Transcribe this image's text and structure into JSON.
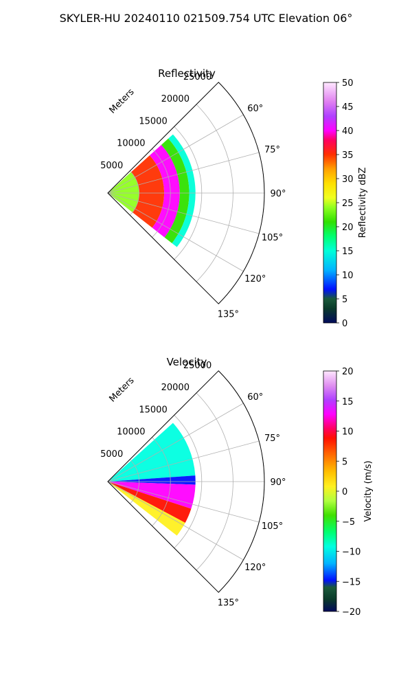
{
  "figure": {
    "suptitle": "SKYLER-HU  20240110  021509.754 UTC Elevation 06°"
  },
  "chart_data": [
    {
      "type": "heatmap",
      "projection": "polar-sector",
      "title": "Reflectivity",
      "radial_label": "Meters",
      "radial_ticks": [
        5000,
        10000,
        15000,
        20000,
        25000
      ],
      "radial_tick_labels": [
        "5000",
        "10000",
        "15000",
        "20000",
        "25000"
      ],
      "rlim": [
        0,
        25000
      ],
      "azimuth_range_deg": [
        45,
        135
      ],
      "azimuth_ticks_deg": [
        60,
        75,
        90,
        105,
        120,
        135
      ],
      "azimuth_tick_labels": [
        "60°",
        "75°",
        "90°",
        "105°",
        "120°",
        "135°"
      ],
      "grid": true,
      "echo_extent": {
        "azimuth_deg": [
          48,
          128
        ],
        "range_m_min": 0,
        "range_m_max_approx": 14000
      },
      "echo_pattern": [
        {
          "range_m": [
            0,
            5000
          ],
          "value_dbz": 25
        },
        {
          "range_m": [
            5000,
            9000
          ],
          "value_dbz": 35
        },
        {
          "range_m": [
            9000,
            11500
          ],
          "value_dbz": 42
        },
        {
          "range_m": [
            11500,
            13000
          ],
          "value_dbz": 22
        },
        {
          "range_m": [
            13000,
            14000
          ],
          "value_dbz": 15
        }
      ],
      "colorbar": {
        "label": "Reflectivity dBZ",
        "vmin": 0,
        "vmax": 50,
        "ticks": [
          0,
          5,
          10,
          15,
          20,
          25,
          30,
          35,
          40,
          45,
          50
        ],
        "tick_labels": [
          "0",
          "5",
          "10",
          "15",
          "20",
          "25",
          "30",
          "35",
          "40",
          "45",
          "50"
        ]
      }
    },
    {
      "type": "heatmap",
      "projection": "polar-sector",
      "title": "Velocity",
      "radial_label": "Meters",
      "radial_ticks": [
        5000,
        10000,
        15000,
        20000,
        25000
      ],
      "radial_tick_labels": [
        "5000",
        "10000",
        "15000",
        "20000",
        "25000"
      ],
      "rlim": [
        0,
        25000
      ],
      "azimuth_range_deg": [
        45,
        135
      ],
      "azimuth_ticks_deg": [
        60,
        75,
        90,
        105,
        120,
        135
      ],
      "azimuth_tick_labels": [
        "60°",
        "75°",
        "90°",
        "105°",
        "120°",
        "135°"
      ],
      "grid": true,
      "echo_extent": {
        "azimuth_deg": [
          48,
          128
        ],
        "range_m_min": 0,
        "range_m_max_approx": 14000
      },
      "echo_pattern": [
        {
          "azimuth_deg": [
            48,
            86
          ],
          "value_ms": -8
        },
        {
          "azimuth_deg": [
            86,
            92
          ],
          "value_ms": -13
        },
        {
          "azimuth_deg": [
            92,
            108
          ],
          "value_ms": 14
        },
        {
          "azimuth_deg": [
            108,
            118
          ],
          "value_ms": 9
        },
        {
          "azimuth_deg": [
            118,
            128
          ],
          "value_ms": 2
        }
      ],
      "colorbar": {
        "label": "Velocity (m/s)",
        "vmin": -20,
        "vmax": 20,
        "ticks": [
          -20,
          -15,
          -10,
          -5,
          0,
          5,
          10,
          15,
          20
        ],
        "tick_labels": [
          "−20",
          "−15",
          "−10",
          "−5",
          "0",
          "5",
          "10",
          "15",
          "20"
        ]
      }
    }
  ]
}
